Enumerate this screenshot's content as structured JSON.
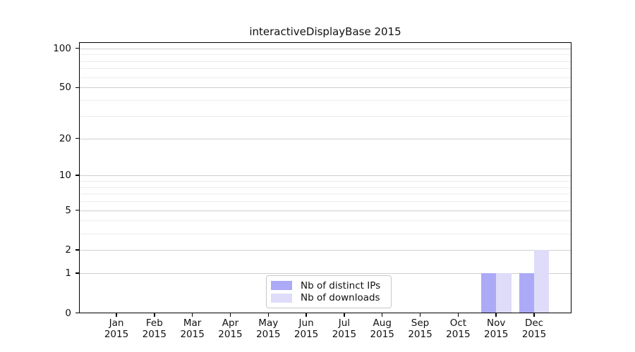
{
  "chart_data": {
    "type": "bar",
    "title": "interactiveDisplayBase 2015",
    "categories": [
      "Jan 2015",
      "Feb 2015",
      "Mar 2015",
      "Apr 2015",
      "May 2015",
      "Jun 2015",
      "Jul 2015",
      "Aug 2015",
      "Sep 2015",
      "Oct 2015",
      "Nov 2015",
      "Dec 2015"
    ],
    "x_tick_line1": [
      "Jan",
      "Feb",
      "Mar",
      "Apr",
      "May",
      "Jun",
      "Jul",
      "Aug",
      "Sep",
      "Oct",
      "Nov",
      "Dec"
    ],
    "x_tick_line2": "2015",
    "series": [
      {
        "name": "Nb of distinct IPs",
        "color": "#acaaf7",
        "values": [
          0,
          0,
          0,
          0,
          0,
          0,
          0,
          0,
          0,
          0,
          1,
          1
        ]
      },
      {
        "name": "Nb of downloads",
        "color": "#dedcf9",
        "values": [
          0,
          0,
          0,
          0,
          0,
          0,
          0,
          0,
          0,
          0,
          1,
          2
        ]
      }
    ],
    "y_axis": {
      "scale": "log10(value+1)",
      "tick_values": [
        0,
        1,
        2,
        5,
        10,
        20,
        50,
        100
      ],
      "tick_labels": [
        "0",
        "1",
        "2",
        "5",
        "10",
        "20",
        "50",
        "100"
      ],
      "major_gridline_values": [
        1,
        2,
        5,
        10,
        20,
        50,
        100
      ],
      "minor_gridline_values": [
        3,
        4,
        6,
        7,
        8,
        9,
        30,
        40,
        60,
        70,
        80,
        90
      ],
      "ylim": [
        0,
        110
      ]
    },
    "legend": {
      "position": "lower center",
      "items": [
        "Nb of distinct IPs",
        "Nb of downloads"
      ]
    },
    "grid": true
  },
  "colors": {
    "background": "#ffffff",
    "axis_frame": "#000000",
    "grid_major": "#cfcfcf",
    "grid_minor": "#ececec",
    "distinct_ips_bar": "#acaaf7",
    "downloads_bar": "#dedcf9",
    "legend_border": "#c8c8c8",
    "text": "#111111"
  }
}
